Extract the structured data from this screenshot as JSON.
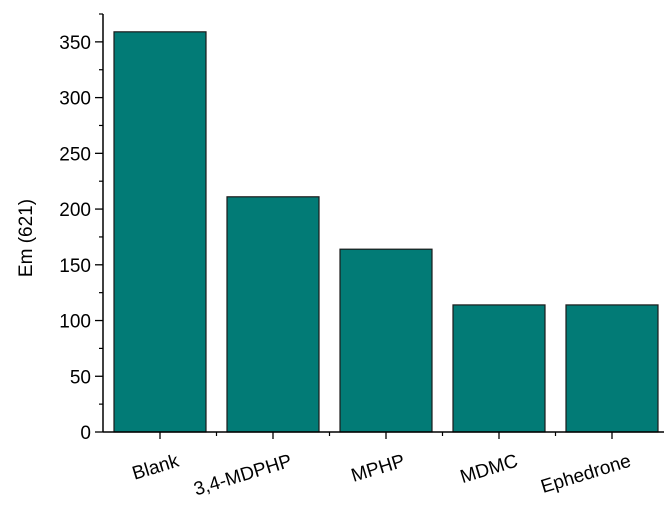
{
  "chart_data": {
    "type": "bar",
    "title": "",
    "xlabel": "",
    "ylabel": "Em (621)",
    "categories": [
      "Blank",
      "3,4-MDPHP",
      "MPHP",
      "MDMC",
      "Ephedrone"
    ],
    "values": [
      359,
      211,
      164,
      114,
      114
    ],
    "ylim": [
      0,
      375
    ],
    "yticks": [
      0,
      50,
      100,
      150,
      200,
      250,
      300,
      350
    ],
    "ytick_labels": [
      "0",
      "50",
      "100",
      "150",
      "200",
      "250",
      "300",
      "350"
    ],
    "minor_ytick_step": 25,
    "grid": false,
    "legend": "none",
    "colors": {
      "bar_fill": "#027b76",
      "bar_stroke": "#1a1a1a",
      "axis": "#000000"
    }
  }
}
